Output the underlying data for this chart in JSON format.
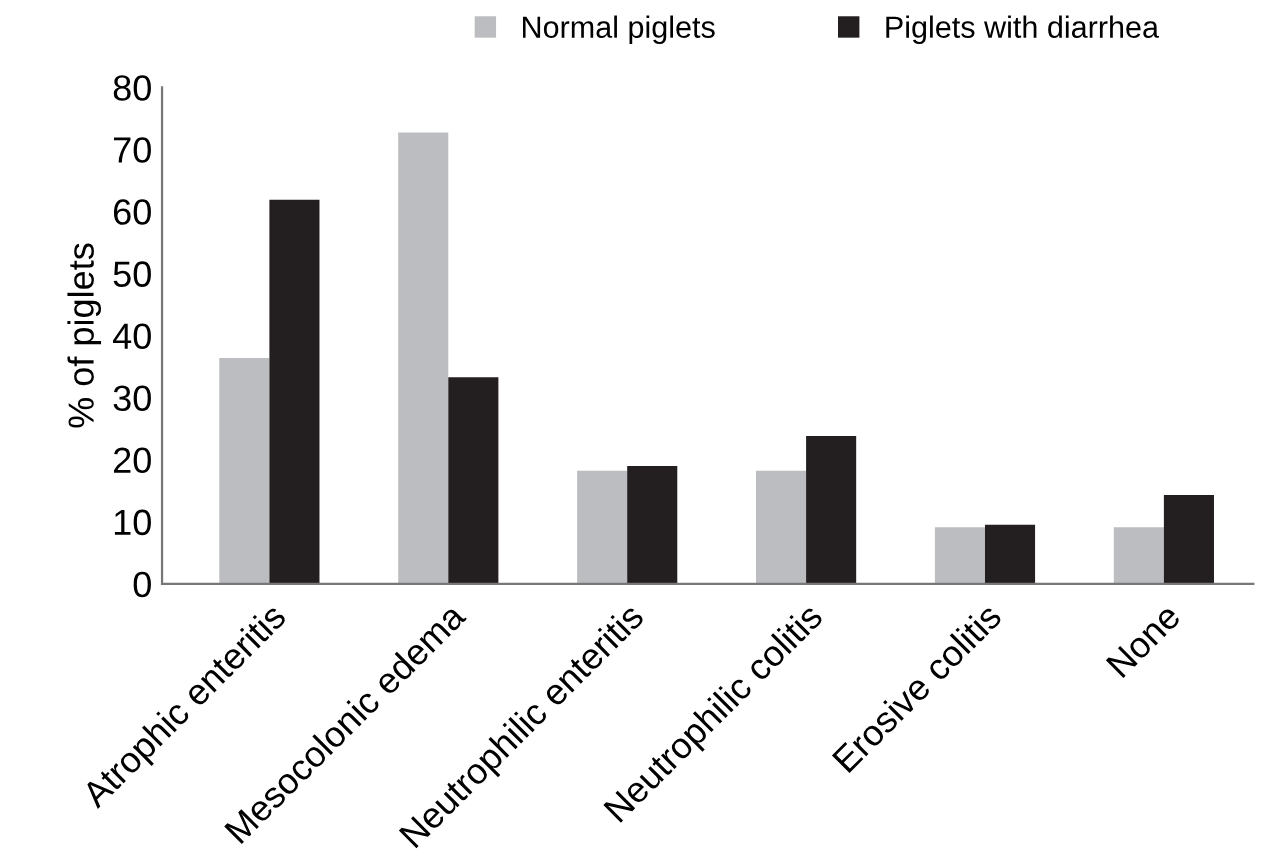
{
  "chart_data": {
    "type": "bar",
    "ylabel": "% of piglets",
    "categories": [
      "Atrophic enteritis",
      "Mesocolonic edema",
      "Neutrophilic enteritis",
      "Neutrophilic colitis",
      "Erosive colitis",
      "None"
    ],
    "series": [
      {
        "name": "Normal piglets",
        "color": "#bcbdc0",
        "values": [
          36.4,
          72.7,
          18.2,
          18.2,
          9.1,
          9.1
        ]
      },
      {
        "name": "Piglets with diarrhea",
        "color": "#231f20",
        "values": [
          61.9,
          33.3,
          19.0,
          23.8,
          9.5,
          14.3
        ]
      }
    ],
    "ylim": [
      0,
      80
    ],
    "yticks": [
      0,
      10,
      20,
      30,
      40,
      50,
      60,
      70,
      80
    ],
    "grid": false,
    "legend": "top"
  }
}
